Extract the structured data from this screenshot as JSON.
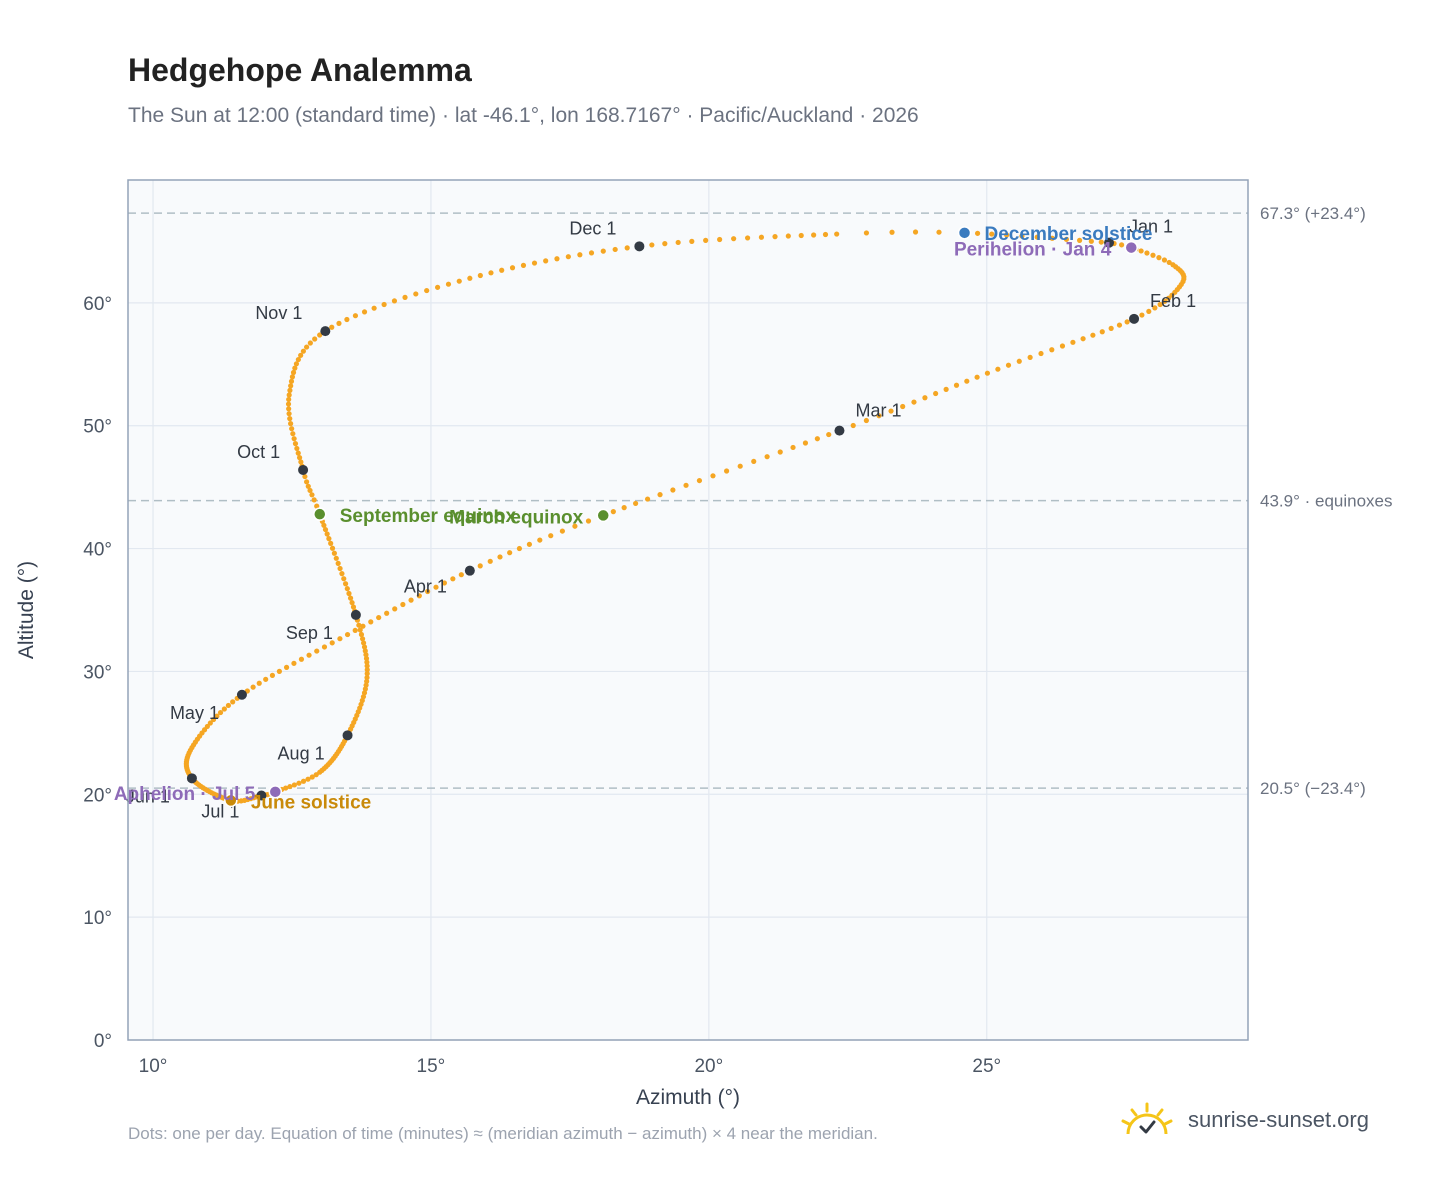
{
  "title": "Hedgehope Analemma",
  "subtitle": "The Sun at 12:00 (standard time) · lat -46.1°, lon 168.7167° · Pacific/Auckland · 2026",
  "footnote": "Dots: one per day. Equation of time (minutes) ≈ (meridian azimuth − azimuth) × 4 near the meridian.",
  "brand": {
    "name": "sunrise-sunset.org",
    "icon": "sun-logo-icon"
  },
  "colors": {
    "path": "#f5a623",
    "month_marker": "#333a44",
    "equinox": "#5a8f2e",
    "december_solstice": "#3a7bbf",
    "june_solstice": "#c98a0a",
    "apsis": "#8e6bb8",
    "plot_bg": "#f8fafc",
    "grid": "#e2e8f0",
    "ref_line": "#b0bec5"
  },
  "chart_data": {
    "type": "scatter",
    "xlabel": "Azimuth (°)",
    "ylabel": "Altitude (°)",
    "xlim": [
      9.55,
      29.7
    ],
    "ylim": [
      0,
      70
    ],
    "x_ticks": [
      10,
      15,
      20,
      25
    ],
    "x_tick_labels": [
      "10°",
      "15°",
      "20°",
      "25°"
    ],
    "y_ticks": [
      0,
      10,
      20,
      30,
      40,
      50,
      60
    ],
    "y_tick_labels": [
      "0°",
      "10°",
      "20°",
      "30°",
      "40°",
      "50°",
      "60°"
    ],
    "grid": true,
    "reference_lines": [
      {
        "y": 67.3,
        "label": "67.3° (+23.4°)"
      },
      {
        "y": 43.9,
        "label": "43.9° · equinoxes"
      },
      {
        "y": 20.5,
        "label": "20.5° (−23.4°)"
      }
    ],
    "month_markers": [
      {
        "label": "Jan 1",
        "x": 27.2,
        "y": 64.9
      },
      {
        "label": "Feb 1",
        "x": 27.65,
        "y": 58.7
      },
      {
        "label": "Mar 1",
        "x": 22.35,
        "y": 49.6
      },
      {
        "label": "Apr 1",
        "x": 15.7,
        "y": 38.2
      },
      {
        "label": "May 1",
        "x": 11.6,
        "y": 28.1
      },
      {
        "label": "Jun 1",
        "x": 10.7,
        "y": 21.3
      },
      {
        "label": "Jul 1",
        "x": 11.95,
        "y": 19.9
      },
      {
        "label": "Aug 1",
        "x": 13.5,
        "y": 24.8
      },
      {
        "label": "Sep 1",
        "x": 13.65,
        "y": 34.6
      },
      {
        "label": "Oct 1",
        "x": 12.7,
        "y": 46.4
      },
      {
        "label": "Nov 1",
        "x": 13.1,
        "y": 57.7
      },
      {
        "label": "Dec 1",
        "x": 18.75,
        "y": 64.6
      }
    ],
    "events": [
      {
        "label": "December solstice",
        "x": 24.6,
        "y": 65.7,
        "kind": "december_solstice"
      },
      {
        "label": "Perihelion · Jan 4",
        "x": 27.6,
        "y": 64.5,
        "kind": "apsis"
      },
      {
        "label": "March equinox",
        "x": 18.1,
        "y": 42.7,
        "kind": "equinox"
      },
      {
        "label": "September equinox",
        "x": 13.0,
        "y": 42.8,
        "kind": "equinox"
      },
      {
        "label": "June solstice",
        "x": 11.4,
        "y": 19.5,
        "kind": "june_solstice"
      },
      {
        "label": "Aphelion · Jul 5",
        "x": 12.2,
        "y": 20.2,
        "kind": "apsis"
      }
    ],
    "path_anchors": [
      {
        "day": 1,
        "x": 27.2,
        "y": 64.9
      },
      {
        "day": 4,
        "x": 27.6,
        "y": 64.5
      },
      {
        "day": 12,
        "x": 28.35,
        "y": 63.1
      },
      {
        "day": 21,
        "x": 28.5,
        "y": 61.5
      },
      {
        "day": 32,
        "x": 27.65,
        "y": 58.7
      },
      {
        "day": 46,
        "x": 25.2,
        "y": 54.6
      },
      {
        "day": 60,
        "x": 22.35,
        "y": 49.6
      },
      {
        "day": 79,
        "x": 18.1,
        "y": 42.7
      },
      {
        "day": 91,
        "x": 15.7,
        "y": 38.2
      },
      {
        "day": 106,
        "x": 13.5,
        "y": 33.0
      },
      {
        "day": 121,
        "x": 11.6,
        "y": 28.1
      },
      {
        "day": 137,
        "x": 10.7,
        "y": 23.8
      },
      {
        "day": 152,
        "x": 10.7,
        "y": 21.3
      },
      {
        "day": 172,
        "x": 11.4,
        "y": 19.5
      },
      {
        "day": 182,
        "x": 11.95,
        "y": 19.9
      },
      {
        "day": 186,
        "x": 12.2,
        "y": 20.2
      },
      {
        "day": 197,
        "x": 13.0,
        "y": 21.8
      },
      {
        "day": 213,
        "x": 13.5,
        "y": 24.8
      },
      {
        "day": 229,
        "x": 13.85,
        "y": 29.5
      },
      {
        "day": 244,
        "x": 13.65,
        "y": 34.6
      },
      {
        "day": 266,
        "x": 13.0,
        "y": 42.8
      },
      {
        "day": 274,
        "x": 12.7,
        "y": 46.4
      },
      {
        "day": 290,
        "x": 12.45,
        "y": 52.5
      },
      {
        "day": 305,
        "x": 13.1,
        "y": 57.7
      },
      {
        "day": 320,
        "x": 15.7,
        "y": 62.0
      },
      {
        "day": 335,
        "x": 18.75,
        "y": 64.6
      },
      {
        "day": 350,
        "x": 22.3,
        "y": 65.6
      },
      {
        "day": 355,
        "x": 24.6,
        "y": 65.7
      },
      {
        "day": 366,
        "x": 27.2,
        "y": 64.9
      }
    ]
  }
}
